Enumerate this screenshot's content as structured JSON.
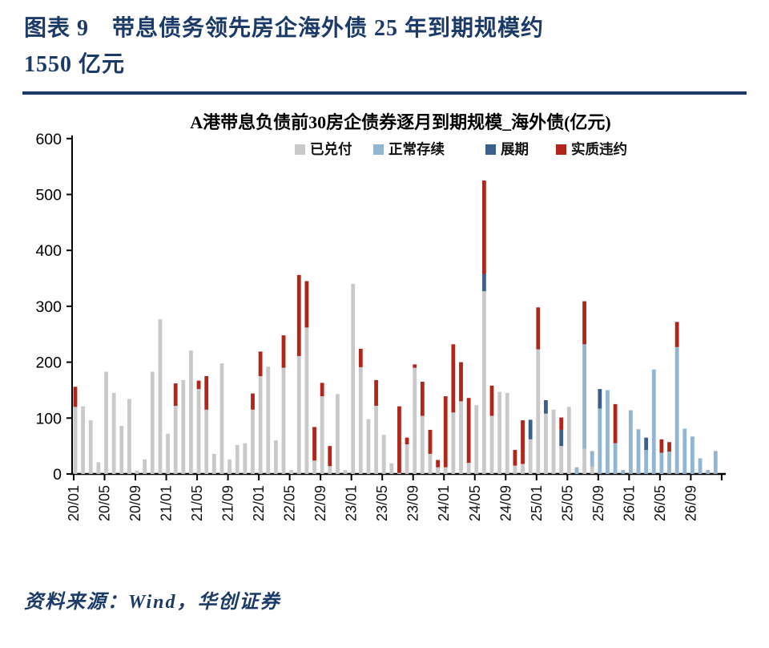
{
  "page": {
    "figure_title_line1": "图表 9　带息债务领先房企海外债 25 年到期规模约",
    "figure_title_line2": "1550 亿元",
    "source": "资料来源：Wind，华创证券",
    "accent_color": "#1b3a68"
  },
  "chart_data": {
    "type": "bar",
    "stacked": true,
    "title": "A港带息负债前30房企债券逐月到期规模_海外债(亿元)",
    "ylabel": "",
    "xlabel": "",
    "ylim": [
      0,
      600
    ],
    "y_ticks": [
      0,
      100,
      200,
      300,
      400,
      500,
      600
    ],
    "grid": false,
    "legend_position": "top",
    "x_tick_labels": [
      "20/01",
      "20/05",
      "20/09",
      "21/01",
      "21/05",
      "21/09",
      "22/01",
      "22/05",
      "22/09",
      "23/01",
      "23/05",
      "23/09",
      "24/01",
      "24/05",
      "24/09",
      "25/01",
      "25/05",
      "25/09",
      "26/01",
      "26/05",
      "26/09"
    ],
    "categories": [
      "20/01",
      "20/02",
      "20/03",
      "20/04",
      "20/05",
      "20/06",
      "20/07",
      "20/08",
      "20/09",
      "20/10",
      "20/11",
      "20/12",
      "21/01",
      "21/02",
      "21/03",
      "21/04",
      "21/05",
      "21/06",
      "21/07",
      "21/08",
      "21/09",
      "21/10",
      "21/11",
      "21/12",
      "22/01",
      "22/02",
      "22/03",
      "22/04",
      "22/05",
      "22/06",
      "22/07",
      "22/08",
      "22/09",
      "22/10",
      "22/11",
      "22/12",
      "23/01",
      "23/02",
      "23/03",
      "23/04",
      "23/05",
      "23/06",
      "23/07",
      "23/08",
      "23/09",
      "23/10",
      "23/11",
      "23/12",
      "24/01",
      "24/02",
      "24/03",
      "24/04",
      "24/05",
      "24/06",
      "24/07",
      "24/08",
      "24/09",
      "24/10",
      "24/11",
      "24/12",
      "25/01",
      "25/02",
      "25/03",
      "25/04",
      "25/05",
      "25/06",
      "25/07",
      "25/08",
      "25/09",
      "25/10",
      "25/11",
      "25/12",
      "26/01",
      "26/02",
      "26/03",
      "26/04",
      "26/05",
      "26/06",
      "26/07",
      "26/08",
      "26/09",
      "26/10",
      "26/11",
      "26/12"
    ],
    "series": [
      {
        "name": "已兑付",
        "color": "#c9c9c9",
        "values": [
          120,
          121,
          96,
          21,
          183,
          145,
          86,
          134,
          6,
          26,
          183,
          277,
          72,
          122,
          168,
          221,
          152,
          115,
          36,
          198,
          26,
          52,
          55,
          115,
          175,
          192,
          60,
          190,
          7,
          211,
          262,
          24,
          139,
          14,
          143,
          7,
          340,
          191,
          98,
          122,
          70,
          19,
          2,
          53,
          190,
          104,
          36,
          12,
          12,
          110,
          130,
          20,
          123,
          327,
          104,
          147,
          145,
          15,
          18,
          62,
          223,
          108,
          115,
          50,
          120,
          0,
          45,
          13,
          0,
          0,
          0,
          0,
          0,
          0,
          0,
          0,
          0,
          0,
          0,
          0,
          0,
          0,
          0,
          0
        ]
      },
      {
        "name": "正常存续",
        "color": "#92b5d1",
        "values": [
          0,
          0,
          0,
          0,
          0,
          0,
          0,
          0,
          0,
          0,
          0,
          0,
          0,
          0,
          0,
          0,
          0,
          0,
          0,
          0,
          0,
          0,
          0,
          0,
          0,
          0,
          0,
          0,
          0,
          0,
          0,
          0,
          0,
          0,
          0,
          0,
          0,
          0,
          0,
          0,
          0,
          0,
          0,
          0,
          0,
          0,
          0,
          0,
          0,
          0,
          0,
          0,
          0,
          0,
          0,
          0,
          0,
          0,
          0,
          0,
          0,
          0,
          0,
          0,
          0,
          12,
          187,
          28,
          117,
          150,
          55,
          7,
          114,
          80,
          43,
          187,
          38,
          40,
          227,
          81,
          67,
          28,
          7,
          41
        ]
      },
      {
        "name": "展期",
        "color": "#3b608c",
        "values": [
          0,
          0,
          0,
          0,
          0,
          0,
          0,
          0,
          0,
          0,
          0,
          0,
          0,
          0,
          0,
          0,
          0,
          0,
          0,
          0,
          0,
          0,
          0,
          0,
          0,
          0,
          0,
          0,
          0,
          0,
          0,
          0,
          0,
          0,
          0,
          0,
          0,
          0,
          0,
          0,
          0,
          0,
          0,
          0,
          0,
          0,
          0,
          0,
          0,
          0,
          0,
          0,
          0,
          31,
          0,
          0,
          0,
          0,
          0,
          35,
          0,
          24,
          0,
          29,
          0,
          0,
          0,
          0,
          35,
          0,
          0,
          0,
          0,
          0,
          22,
          0,
          0,
          0,
          0,
          0,
          0,
          0,
          0,
          0
        ]
      },
      {
        "name": "实质违约",
        "color": "#b1261b",
        "values": [
          36,
          0,
          0,
          0,
          0,
          0,
          0,
          0,
          0,
          0,
          0,
          0,
          0,
          40,
          0,
          0,
          15,
          60,
          0,
          0,
          0,
          0,
          0,
          29,
          44,
          0,
          0,
          58,
          0,
          145,
          83,
          60,
          24,
          36,
          0,
          0,
          0,
          33,
          0,
          46,
          0,
          0,
          119,
          12,
          6,
          61,
          43,
          13,
          127,
          122,
          70,
          116,
          0,
          167,
          54,
          0,
          0,
          28,
          78,
          0,
          75,
          0,
          0,
          22,
          0,
          0,
          77,
          0,
          0,
          0,
          70,
          0,
          0,
          0,
          0,
          0,
          24,
          17,
          45,
          0,
          0,
          0,
          0,
          0
        ]
      }
    ]
  }
}
